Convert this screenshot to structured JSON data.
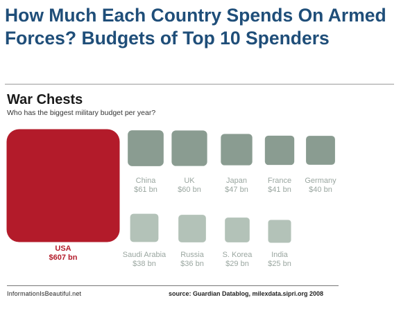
{
  "page": {
    "title": "How Much Each Country Spends On Armed Forces? Budgets of Top 10 Spenders"
  },
  "chart_data": {
    "type": "bubble",
    "title": "War Chests",
    "subtitle": "Who has the biggest military budget per year?",
    "unit": "bn",
    "items": [
      {
        "country": "USA",
        "value_label": "$607 bn",
        "value": 607,
        "color": "#b31b2a"
      },
      {
        "country": "China",
        "value_label": "$61 bn",
        "value": 61,
        "color": "#8a9c91"
      },
      {
        "country": "UK",
        "value_label": "$60 bn",
        "value": 60,
        "color": "#8a9c91"
      },
      {
        "country": "Japan",
        "value_label": "$47 bn",
        "value": 47,
        "color": "#8a9c91"
      },
      {
        "country": "France",
        "value_label": "$41 bn",
        "value": 41,
        "color": "#8a9c91"
      },
      {
        "country": "Germany",
        "value_label": "$40 bn",
        "value": 40,
        "color": "#8a9c91"
      },
      {
        "country": "Saudi Arabia",
        "value_label": "$38 bn",
        "value": 38,
        "color": "#b3c2b8"
      },
      {
        "country": "Russia",
        "value_label": "$36 bn",
        "value": 36,
        "color": "#b3c2b8"
      },
      {
        "country": "S. Korea",
        "value_label": "$29 bn",
        "value": 29,
        "color": "#b3c2b8"
      },
      {
        "country": "India",
        "value_label": "$25 bn",
        "value": 25,
        "color": "#b3c2b8"
      }
    ],
    "label_color": "#9aa6a0",
    "highlight_label_color": "#b31b2a"
  },
  "footer": {
    "credit": "InformationIsBeautiful.net",
    "source": "source: Guardian Datablog, milexdata.sipri.org 2008"
  }
}
